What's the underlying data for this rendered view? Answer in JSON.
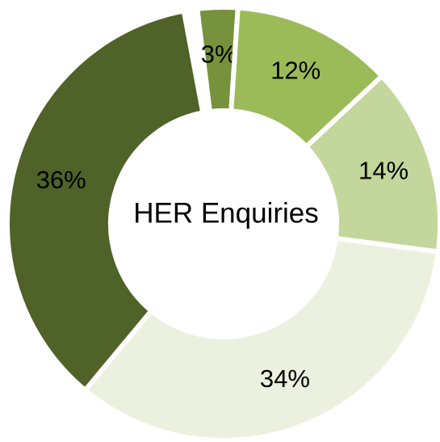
{
  "chart_data": {
    "type": "donut",
    "title": "HER Enquiries",
    "categories": [
      null,
      null,
      null,
      null,
      null
    ],
    "values": [
      3,
      12,
      14,
      34,
      36
    ],
    "value_labels": [
      "3%",
      "12%",
      "14%",
      "34%",
      "36%"
    ],
    "colors": [
      "#76923c",
      "#9bbb59",
      "#c3d69b",
      "#ebf1de",
      "#4f6228"
    ]
  }
}
